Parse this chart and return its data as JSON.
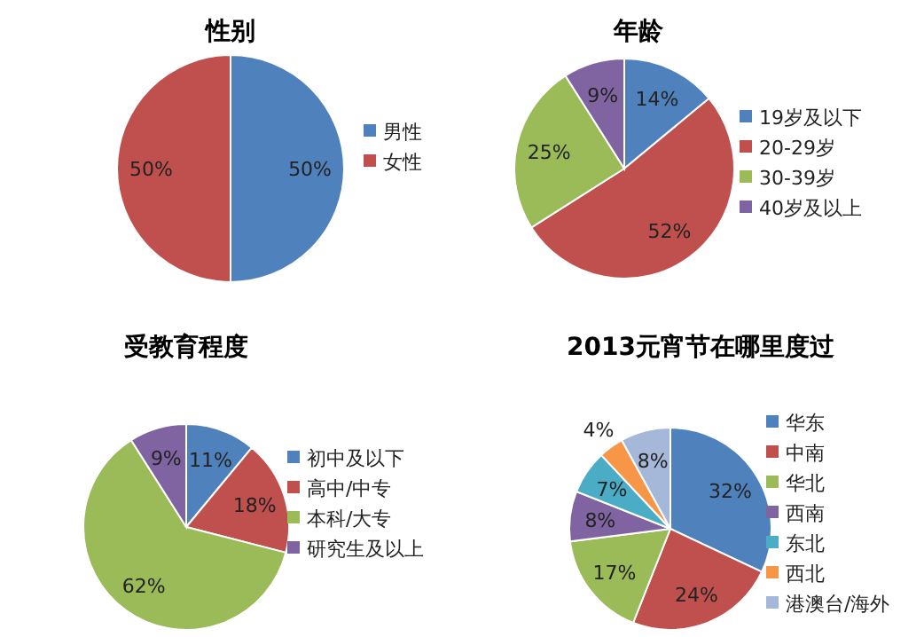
{
  "chart_data": [
    {
      "type": "pie",
      "title": "性别",
      "categories": [
        "男性",
        "女性"
      ],
      "values": [
        50,
        50
      ],
      "value_labels": [
        "50%",
        "50%"
      ],
      "colors": [
        "#4f81bd",
        "#c0504d"
      ],
      "legend": "right"
    },
    {
      "type": "pie",
      "title": "年龄",
      "categories": [
        "19岁及以下",
        "20-29岁",
        "30-39岁",
        "40岁及以上"
      ],
      "values": [
        14,
        52,
        25,
        9
      ],
      "value_labels": [
        "14%",
        "52%",
        "25%",
        "9%"
      ],
      "colors": [
        "#4f81bd",
        "#c0504d",
        "#9bbb59",
        "#8064a2"
      ],
      "legend": "right"
    },
    {
      "type": "pie",
      "title": "受教育程度",
      "categories": [
        "初中及以下",
        "高中/中专",
        "本科/大专",
        "研究生及以上"
      ],
      "values": [
        11,
        18,
        62,
        9
      ],
      "value_labels": [
        "11%",
        "18%",
        "62%",
        "9%"
      ],
      "colors": [
        "#4f81bd",
        "#c0504d",
        "#9bbb59",
        "#8064a2"
      ],
      "legend": "right"
    },
    {
      "type": "pie",
      "title": "2013元宵节在哪里度过",
      "categories": [
        "华东",
        "中南",
        "华北",
        "西南",
        "东北",
        "西北",
        "港澳台/海外"
      ],
      "values": [
        32,
        24,
        17,
        8,
        7,
        4,
        8
      ],
      "value_labels": [
        "32%",
        "24%",
        "17%",
        "8%",
        "7%",
        "4%",
        "8%"
      ],
      "colors": [
        "#4f81bd",
        "#c0504d",
        "#9bbb59",
        "#8064a2",
        "#4bacc6",
        "#f79646",
        "#a5b8d9"
      ],
      "legend": "right"
    }
  ]
}
